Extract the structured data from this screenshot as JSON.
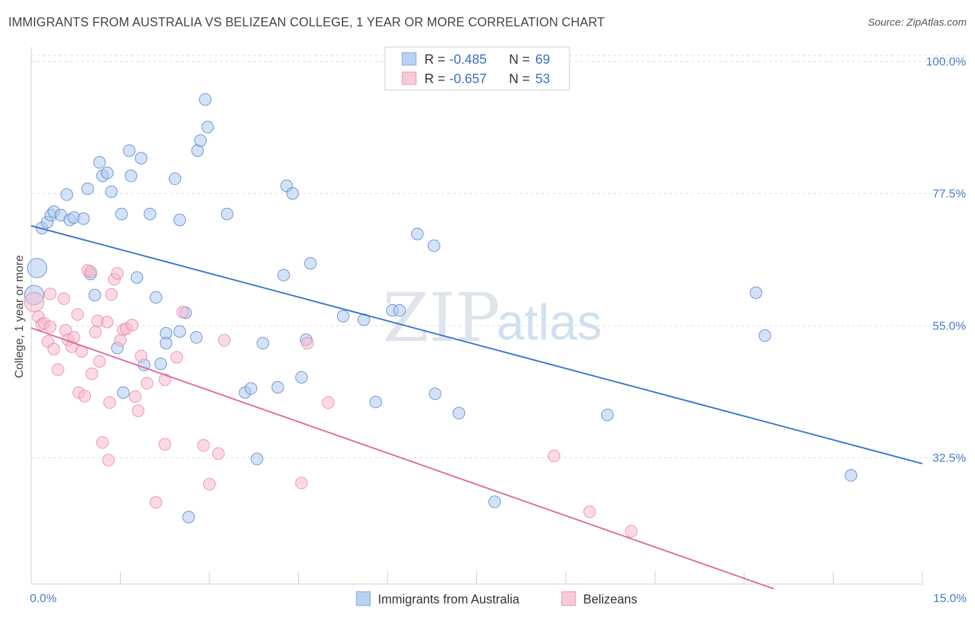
{
  "title": "IMMIGRANTS FROM AUSTRALIA VS BELIZEAN COLLEGE, 1 YEAR OR MORE CORRELATION CHART",
  "source": "Source: ZipAtlas.com",
  "watermark": {
    "zip": "ZIP",
    "atlas": "atlas"
  },
  "colors": {
    "blue": "#4a7cc9",
    "blue_fill": "#aecbef",
    "blue_line": "#3272d0",
    "pink": "#e87aa0",
    "pink_fill": "#f7bcd0",
    "pink_line": "#e0689a",
    "grid": "#dddddd"
  },
  "legend": {
    "rows": [
      {
        "r_label": "R = ",
        "r_value": "-0.485",
        "n_label": "N = ",
        "n_value": "69"
      },
      {
        "r_label": "R = ",
        "r_value": "-0.657",
        "n_label": "N = ",
        "n_value": "53"
      }
    ]
  },
  "bottom_legend": [
    "Immigrants from Australia",
    "Belizeans"
  ],
  "chart_data": {
    "type": "scatter",
    "title": "IMMIGRANTS FROM AUSTRALIA VS BELIZEAN COLLEGE, 1 YEAR OR MORE CORRELATION CHART",
    "xlabel": "",
    "ylabel": "College, 1 year or more",
    "xlim": [
      0,
      15
    ],
    "ylim": [
      11,
      101
    ],
    "x_tick_labels": [
      "0.0%",
      "15.0%"
    ],
    "y_ticks": [
      100,
      77.5,
      55,
      32.5
    ],
    "y_tick_labels": [
      "100.0%",
      "77.5%",
      "55.0%",
      "32.5%"
    ],
    "grid": true,
    "series": [
      {
        "name": "Immigrants from Australia",
        "color": "#4a7cc9",
        "trend": {
          "x": [
            0,
            15
          ],
          "y": [
            72.0,
            31.5
          ]
        },
        "points": [
          {
            "x": 0.1,
            "y": 64.8,
            "big": true
          },
          {
            "x": 0.05,
            "y": 60.2,
            "big": true
          },
          {
            "x": 0.18,
            "y": 71.6
          },
          {
            "x": 0.27,
            "y": 72.6
          },
          {
            "x": 0.33,
            "y": 73.8
          },
          {
            "x": 0.38,
            "y": 74.4
          },
          {
            "x": 0.5,
            "y": 73.8
          },
          {
            "x": 0.6,
            "y": 77.3
          },
          {
            "x": 0.65,
            "y": 73.0
          },
          {
            "x": 0.72,
            "y": 73.4
          },
          {
            "x": 0.88,
            "y": 73.2
          },
          {
            "x": 0.95,
            "y": 78.3
          },
          {
            "x": 1.15,
            "y": 82.8
          },
          {
            "x": 1.2,
            "y": 80.5
          },
          {
            "x": 1.28,
            "y": 81.0
          },
          {
            "x": 1.35,
            "y": 77.8
          },
          {
            "x": 1.52,
            "y": 74.0
          },
          {
            "x": 1.65,
            "y": 84.8
          },
          {
            "x": 1.68,
            "y": 80.5
          },
          {
            "x": 1.85,
            "y": 83.5
          },
          {
            "x": 2.0,
            "y": 74.0
          },
          {
            "x": 2.42,
            "y": 80.0
          },
          {
            "x": 2.5,
            "y": 73.0
          },
          {
            "x": 2.8,
            "y": 84.8
          },
          {
            "x": 2.85,
            "y": 86.5
          },
          {
            "x": 2.93,
            "y": 93.5
          },
          {
            "x": 2.97,
            "y": 88.8
          },
          {
            "x": 3.3,
            "y": 74.0
          },
          {
            "x": 4.3,
            "y": 78.8
          },
          {
            "x": 4.4,
            "y": 77.5
          },
          {
            "x": 1.0,
            "y": 63.8
          },
          {
            "x": 1.07,
            "y": 60.2
          },
          {
            "x": 1.78,
            "y": 63.2
          },
          {
            "x": 2.1,
            "y": 59.8
          },
          {
            "x": 2.27,
            "y": 53.7
          },
          {
            "x": 2.27,
            "y": 52.0
          },
          {
            "x": 2.5,
            "y": 54.0
          },
          {
            "x": 2.6,
            "y": 57.2
          },
          {
            "x": 2.78,
            "y": 53.0
          },
          {
            "x": 1.45,
            "y": 51.2
          },
          {
            "x": 1.9,
            "y": 48.3
          },
          {
            "x": 2.18,
            "y": 48.5
          },
          {
            "x": 1.55,
            "y": 43.6
          },
          {
            "x": 3.6,
            "y": 43.6
          },
          {
            "x": 3.7,
            "y": 44.3
          },
          {
            "x": 3.8,
            "y": 32.3
          },
          {
            "x": 3.9,
            "y": 52.0
          },
          {
            "x": 4.15,
            "y": 44.5
          },
          {
            "x": 4.55,
            "y": 46.2
          },
          {
            "x": 4.63,
            "y": 52.6
          },
          {
            "x": 4.25,
            "y": 63.6
          },
          {
            "x": 4.7,
            "y": 65.6
          },
          {
            "x": 5.25,
            "y": 56.6
          },
          {
            "x": 5.6,
            "y": 56.0
          },
          {
            "x": 5.8,
            "y": 42.0
          },
          {
            "x": 6.08,
            "y": 57.6
          },
          {
            "x": 6.2,
            "y": 57.6
          },
          {
            "x": 6.5,
            "y": 70.6
          },
          {
            "x": 6.78,
            "y": 68.6
          },
          {
            "x": 6.8,
            "y": 43.4
          },
          {
            "x": 7.2,
            "y": 40.1
          },
          {
            "x": 7.8,
            "y": 25.0
          },
          {
            "x": 9.7,
            "y": 39.8
          },
          {
            "x": 12.2,
            "y": 60.6
          },
          {
            "x": 12.35,
            "y": 53.3
          },
          {
            "x": 13.8,
            "y": 29.5
          },
          {
            "x": 2.65,
            "y": 22.4
          }
        ]
      },
      {
        "name": "Belizeans",
        "color": "#e87aa0",
        "trend": {
          "x": [
            0,
            12.5
          ],
          "y": [
            54.6,
            10.2
          ]
        },
        "points": [
          {
            "x": 0.05,
            "y": 59.0,
            "big": true
          },
          {
            "x": 0.12,
            "y": 56.5
          },
          {
            "x": 0.18,
            "y": 55.2
          },
          {
            "x": 0.22,
            "y": 55.4
          },
          {
            "x": 0.32,
            "y": 54.8
          },
          {
            "x": 0.28,
            "y": 52.3
          },
          {
            "x": 0.32,
            "y": 60.4
          },
          {
            "x": 0.38,
            "y": 51.0
          },
          {
            "x": 0.45,
            "y": 47.5
          },
          {
            "x": 0.55,
            "y": 59.6
          },
          {
            "x": 0.58,
            "y": 54.2
          },
          {
            "x": 0.62,
            "y": 52.6
          },
          {
            "x": 0.68,
            "y": 51.4
          },
          {
            "x": 0.72,
            "y": 53.0
          },
          {
            "x": 0.78,
            "y": 56.9
          },
          {
            "x": 0.85,
            "y": 50.6
          },
          {
            "x": 0.8,
            "y": 43.6
          },
          {
            "x": 0.9,
            "y": 43.0
          },
          {
            "x": 0.95,
            "y": 64.4
          },
          {
            "x": 1.0,
            "y": 64.2
          },
          {
            "x": 1.02,
            "y": 46.8
          },
          {
            "x": 1.08,
            "y": 53.9
          },
          {
            "x": 1.12,
            "y": 55.8
          },
          {
            "x": 1.15,
            "y": 48.9
          },
          {
            "x": 1.2,
            "y": 35.1
          },
          {
            "x": 1.28,
            "y": 55.6
          },
          {
            "x": 1.3,
            "y": 32.1
          },
          {
            "x": 1.32,
            "y": 41.9
          },
          {
            "x": 1.35,
            "y": 60.3
          },
          {
            "x": 1.4,
            "y": 62.9
          },
          {
            "x": 1.45,
            "y": 63.9
          },
          {
            "x": 1.5,
            "y": 52.5
          },
          {
            "x": 1.55,
            "y": 54.3
          },
          {
            "x": 1.6,
            "y": 54.5
          },
          {
            "x": 1.7,
            "y": 55.1
          },
          {
            "x": 1.75,
            "y": 42.9
          },
          {
            "x": 1.8,
            "y": 40.5
          },
          {
            "x": 1.85,
            "y": 49.8
          },
          {
            "x": 1.95,
            "y": 45.2
          },
          {
            "x": 2.1,
            "y": 24.9
          },
          {
            "x": 2.25,
            "y": 34.8
          },
          {
            "x": 2.25,
            "y": 45.8
          },
          {
            "x": 2.45,
            "y": 49.6
          },
          {
            "x": 2.55,
            "y": 57.3
          },
          {
            "x": 2.9,
            "y": 34.6
          },
          {
            "x": 3.0,
            "y": 28.0
          },
          {
            "x": 3.15,
            "y": 33.2
          },
          {
            "x": 3.25,
            "y": 52.5
          },
          {
            "x": 4.65,
            "y": 52.0
          },
          {
            "x": 4.55,
            "y": 28.2
          },
          {
            "x": 5.0,
            "y": 41.9
          },
          {
            "x": 8.8,
            "y": 32.8
          },
          {
            "x": 9.4,
            "y": 23.3
          },
          {
            "x": 10.1,
            "y": 20.0
          }
        ]
      }
    ]
  }
}
